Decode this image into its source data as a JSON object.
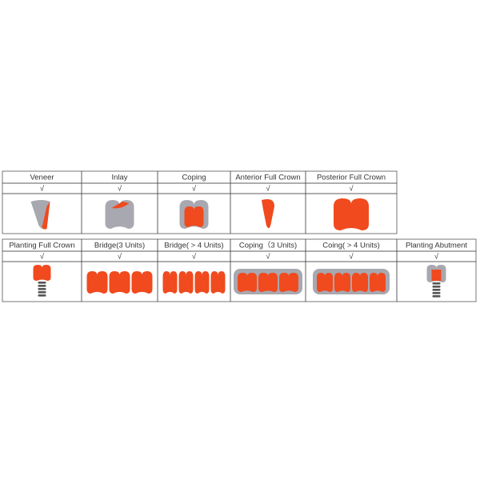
{
  "tables": [
    {
      "columns": [
        {
          "label": "Veneer",
          "mark": "√"
        },
        {
          "label": "Inlay",
          "mark": "√"
        },
        {
          "label": "Coping",
          "mark": "√"
        },
        {
          "label": "Anterior Full Crown",
          "mark": "√"
        },
        {
          "label": "Posterior Full Crown",
          "mark": "√"
        }
      ]
    },
    {
      "columns": [
        {
          "label": "Planting Full Crown",
          "mark": "√"
        },
        {
          "label": "Bridge(3 Units)",
          "mark": "√"
        },
        {
          "label": "Bridge( > 4 Units)",
          "mark": "√"
        },
        {
          "label": "Coping（3 Units)",
          "mark": "√"
        },
        {
          "label": "Coing( > 4 Units)",
          "mark": "√"
        },
        {
          "label": "Planting Abutment",
          "mark": "√"
        }
      ]
    }
  ]
}
